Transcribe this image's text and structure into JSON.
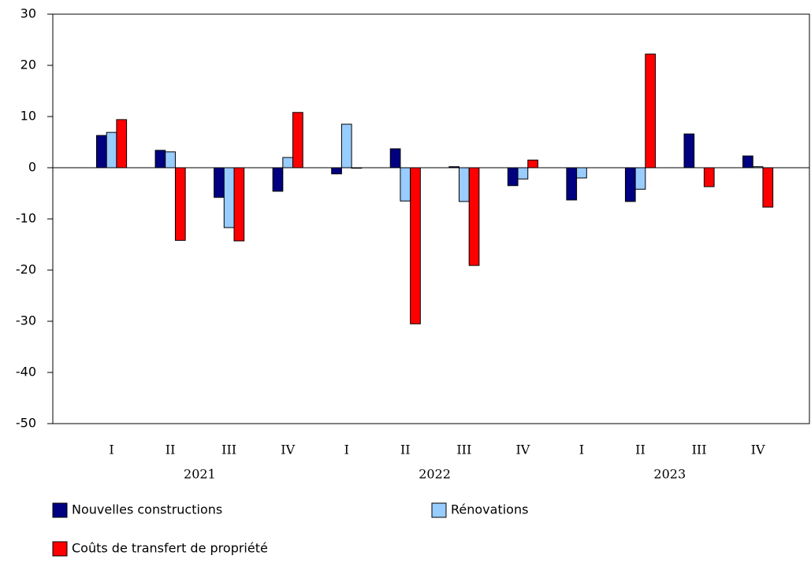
{
  "chart_data": {
    "type": "bar",
    "categories": [
      "I",
      "II",
      "III",
      "IV",
      "I",
      "II",
      "III",
      "IV",
      "I",
      "II",
      "III",
      "IV"
    ],
    "years": [
      "2021",
      "2022",
      "2023"
    ],
    "series": [
      {
        "name": "Nouvelles constructions",
        "color": "#000080",
        "values": [
          6.3,
          3.4,
          -5.8,
          -4.6,
          -1.2,
          3.7,
          0.2,
          -3.5,
          -6.3,
          -6.6,
          6.6,
          2.3
        ]
      },
      {
        "name": "Rénovations",
        "color": "#99ccff",
        "values": [
          6.9,
          3.1,
          -11.7,
          2.0,
          8.5,
          -6.5,
          -6.6,
          -2.2,
          -2.0,
          -4.2,
          0,
          0.2
        ]
      },
      {
        "name": "Coûts de transfert de propriété",
        "color": "#ff0000",
        "values": [
          9.4,
          -14.2,
          -14.3,
          10.8,
          -0.1,
          -30.5,
          -19.1,
          1.5,
          0,
          22.2,
          -3.7,
          -7.7
        ]
      }
    ],
    "ylim": [
      -50,
      30
    ],
    "yticks": [
      -50,
      -40,
      -30,
      -20,
      -10,
      0,
      10,
      20,
      30
    ]
  }
}
